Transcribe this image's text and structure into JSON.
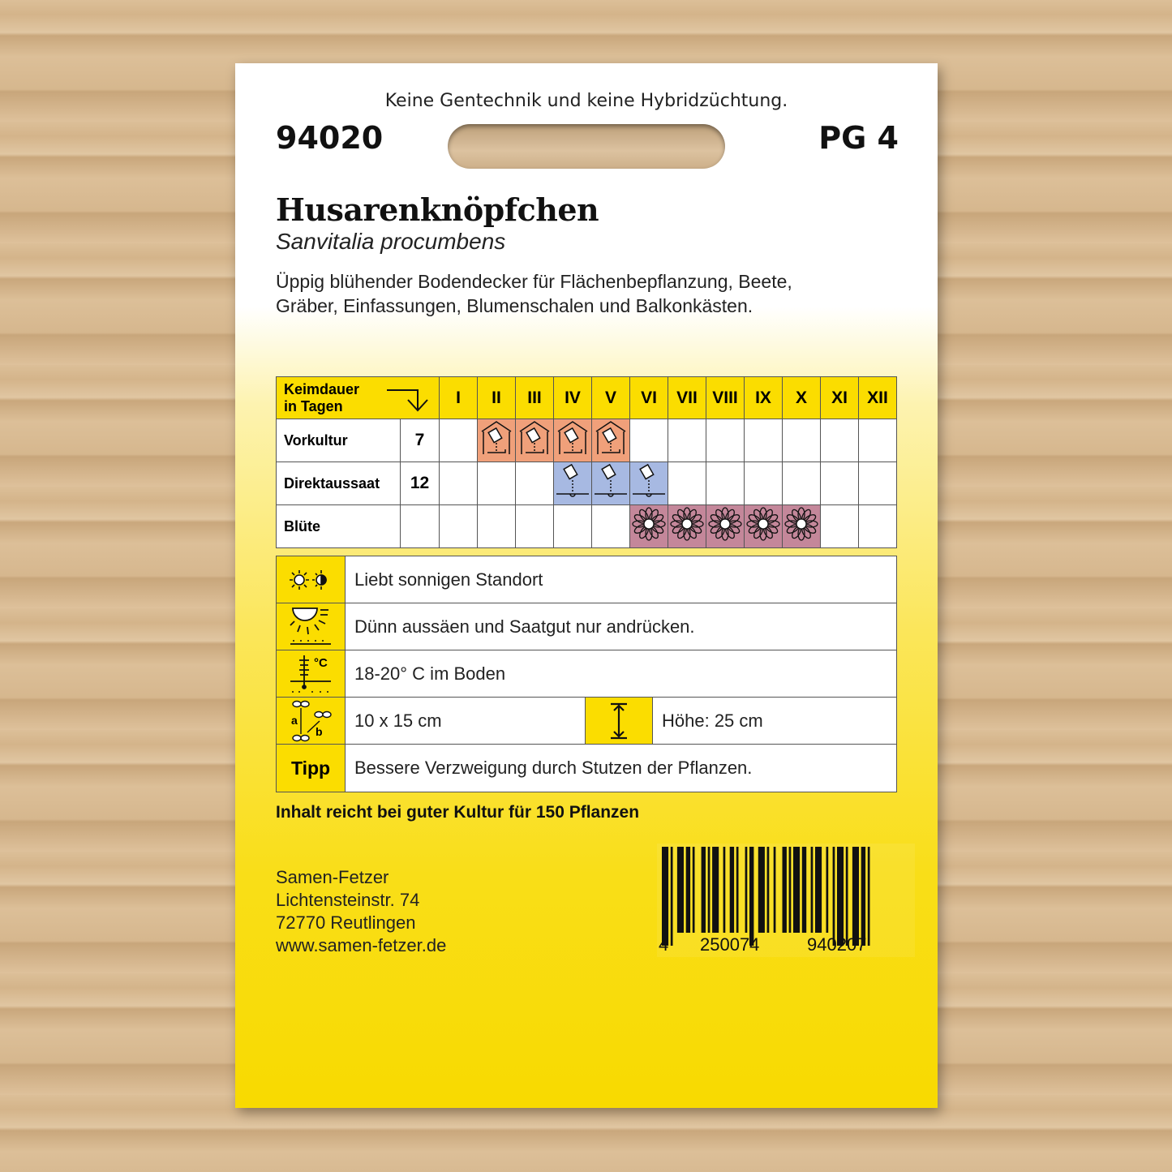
{
  "header": {
    "tagline": "Keine Gentechnik und keine Hybridzüchtung.",
    "article_number": "94020",
    "price_group": "PG 4"
  },
  "product": {
    "name": "Husarenknöpfchen",
    "latin_name": "Sanvitalia procumbens",
    "description_line1": "Üppig blühender Bodendecker für Flächenbepflanzung, Beete,",
    "description_line2": "Gräber, Einfassungen, Blumenschalen und Balkonkästen."
  },
  "calendar": {
    "header_label_line1": "Keimdauer",
    "header_label_line2": "in Tagen",
    "months": [
      "I",
      "II",
      "III",
      "IV",
      "V",
      "VI",
      "VII",
      "VIII",
      "IX",
      "X",
      "XI",
      "XII"
    ],
    "rows": [
      {
        "label": "Vorkultur",
        "days": "7",
        "months_active": [
          2,
          3,
          4,
          5
        ],
        "icon": "greenhouse-sowing-icon",
        "color": "#f0a07a"
      },
      {
        "label": "Direktaussaat",
        "days": "12",
        "months_active": [
          4,
          5,
          6
        ],
        "icon": "seed-packet-sowing-icon",
        "color": "#a7b9e2"
      },
      {
        "label": "Blüte",
        "days": "",
        "months_active": [
          6,
          7,
          8,
          9,
          10
        ],
        "icon": "flower-icon",
        "color": "#c4879a"
      }
    ]
  },
  "info": {
    "location": "Liebt sonnigen Standort",
    "sowing": "Dünn aussäen und Saatgut nur andrücken.",
    "temperature": "18-20° C im Boden",
    "spacing": "10 x 15 cm",
    "height": "Höhe: 25 cm",
    "tip_label": "Tipp",
    "tip": "Bessere Verzweigung durch Stutzen der Pflanzen."
  },
  "content_note": "Inhalt reicht bei guter Kultur für 150 Pflanzen",
  "address": {
    "company": "Samen-Fetzer",
    "street": "Lichtensteinstr. 74",
    "city": "72770 Reutlingen",
    "web": "www.samen-fetzer.de"
  },
  "barcode": {
    "first": "4",
    "group1": "250074",
    "group2": "940207"
  },
  "colors": {
    "yellow": "#fbdd00",
    "vorkultur": "#f0a07a",
    "direktaussaat": "#a7b9e2",
    "bluete": "#c4879a"
  }
}
